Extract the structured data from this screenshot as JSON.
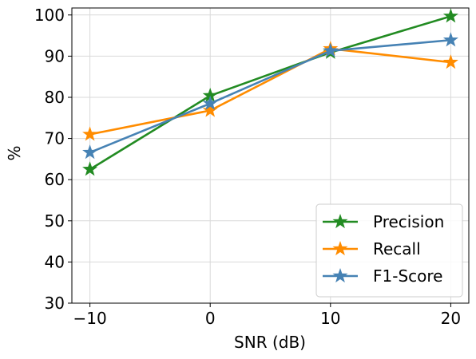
{
  "chart_data": {
    "type": "line",
    "title": "",
    "xlabel": "SNR (dB)",
    "ylabel": "%",
    "x": [
      -10,
      0,
      10,
      20
    ],
    "x_ticks": [
      -10,
      0,
      10,
      20
    ],
    "x_tick_labels": [
      "−10",
      "0",
      "10",
      "20"
    ],
    "y_ticks": [
      30,
      40,
      50,
      60,
      70,
      80,
      90,
      100
    ],
    "y_tick_labels": [
      "30",
      "40",
      "50",
      "60",
      "70",
      "80",
      "90",
      "100"
    ],
    "xlim": [
      -11.5,
      21.5
    ],
    "ylim": [
      30,
      101.7
    ],
    "grid": true,
    "legend_position": "lower-right",
    "marker": "star",
    "series": [
      {
        "name": "Precision",
        "color": "#228b22",
        "values": [
          62.5,
          80.4,
          90.9,
          99.7
        ]
      },
      {
        "name": "Recall",
        "color": "#ff8c00",
        "values": [
          71.0,
          76.8,
          91.8,
          88.5
        ]
      },
      {
        "name": "F1-Score",
        "color": "#4682b4",
        "values": [
          66.6,
          78.5,
          91.3,
          93.9
        ]
      }
    ]
  }
}
